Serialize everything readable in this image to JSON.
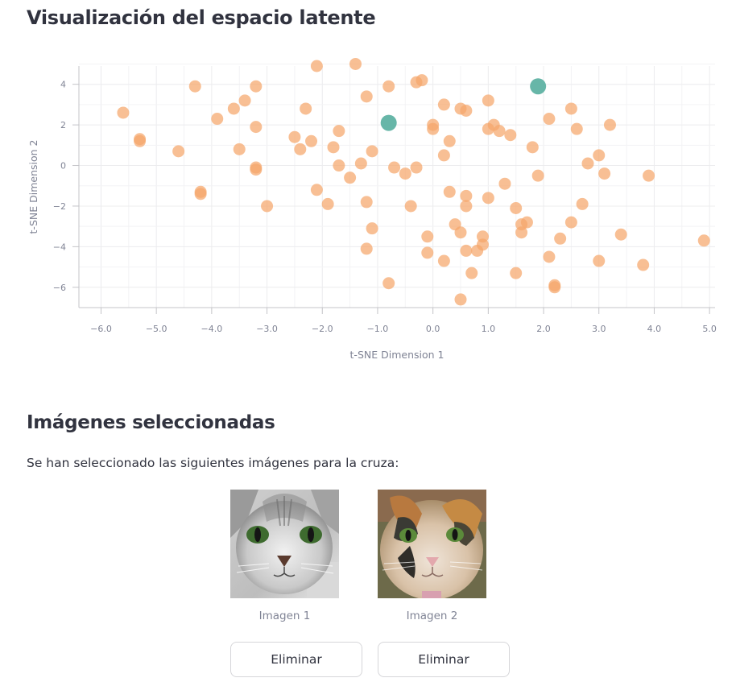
{
  "page": {
    "title": "Visualización del espacio latente",
    "selected_title": "Imágenes seleccionadas",
    "selected_text": "Se han seleccionado las siguientes imágenes para la cruza:"
  },
  "images": [
    {
      "caption": "Imagen 1",
      "button_label": "Eliminar",
      "icon": "gray-cat-photo"
    },
    {
      "caption": "Imagen 2",
      "button_label": "Eliminar",
      "icon": "calico-cat-photo"
    }
  ],
  "colors": {
    "points": "#f5a66b",
    "selected": "#5fb2a3"
  },
  "chart_data": {
    "type": "scatter",
    "xlabel": "t-SNE Dimension 1",
    "ylabel": "t-SNE Dimension 2",
    "xlim": [
      -6.4,
      5.1
    ],
    "ylim": [
      -7.0,
      4.9
    ],
    "xticks": [
      "−6.0",
      "−5.0",
      "−4.0",
      "−3.0",
      "−2.0",
      "−1.0",
      "0.0",
      "1.0",
      "2.0",
      "3.0",
      "4.0",
      "5.0"
    ],
    "yticks": [
      "4",
      "2",
      "0",
      "−2",
      "−4",
      "−6"
    ],
    "grid": true,
    "series": [
      {
        "points": [
          [
            -5.6,
            2.6
          ],
          [
            -5.3,
            1.3
          ],
          [
            -5.3,
            1.2
          ],
          [
            -4.6,
            0.7
          ],
          [
            -4.3,
            3.9
          ],
          [
            -4.2,
            -1.3
          ],
          [
            -4.2,
            -1.4
          ],
          [
            -3.9,
            2.3
          ],
          [
            -3.6,
            2.8
          ],
          [
            -3.5,
            0.8
          ],
          [
            -3.4,
            3.2
          ],
          [
            -3.2,
            3.9
          ],
          [
            -3.2,
            -0.1
          ],
          [
            -3.2,
            -0.2
          ],
          [
            -3.2,
            1.9
          ],
          [
            -3.0,
            -2.0
          ],
          [
            -2.5,
            1.4
          ],
          [
            -2.4,
            0.8
          ],
          [
            -2.3,
            2.8
          ],
          [
            -2.2,
            1.2
          ],
          [
            -2.1,
            4.9
          ],
          [
            -2.1,
            -1.2
          ],
          [
            -1.9,
            -1.9
          ],
          [
            -1.8,
            0.9
          ],
          [
            -1.7,
            1.7
          ],
          [
            -1.7,
            0.0
          ],
          [
            -1.5,
            -0.6
          ],
          [
            -1.4,
            5.0
          ],
          [
            -1.3,
            0.1
          ],
          [
            -1.2,
            3.4
          ],
          [
            -1.2,
            -4.1
          ],
          [
            -1.2,
            -1.8
          ],
          [
            -1.1,
            -3.1
          ],
          [
            -1.1,
            0.7
          ],
          [
            -0.8,
            3.9
          ],
          [
            -0.8,
            -5.8
          ],
          [
            -0.7,
            -0.1
          ],
          [
            -0.5,
            -0.4
          ],
          [
            -0.4,
            -2.0
          ],
          [
            -0.3,
            4.1
          ],
          [
            -0.3,
            -0.1
          ],
          [
            -0.2,
            4.2
          ],
          [
            -0.1,
            -3.5
          ],
          [
            -0.1,
            -4.3
          ],
          [
            0.0,
            1.8
          ],
          [
            0.0,
            2.0
          ],
          [
            0.2,
            3.0
          ],
          [
            0.2,
            0.5
          ],
          [
            0.2,
            -4.7
          ],
          [
            0.3,
            -1.3
          ],
          [
            0.3,
            1.2
          ],
          [
            0.4,
            -2.9
          ],
          [
            0.5,
            2.8
          ],
          [
            0.5,
            -3.3
          ],
          [
            0.5,
            -6.6
          ],
          [
            0.6,
            -1.5
          ],
          [
            0.6,
            -2.0
          ],
          [
            0.6,
            2.7
          ],
          [
            0.6,
            -4.2
          ],
          [
            0.7,
            -5.3
          ],
          [
            0.8,
            -4.2
          ],
          [
            0.9,
            -3.5
          ],
          [
            0.9,
            -3.9
          ],
          [
            1.0,
            1.8
          ],
          [
            1.0,
            -1.6
          ],
          [
            1.0,
            3.2
          ],
          [
            1.1,
            2.0
          ],
          [
            1.2,
            1.7
          ],
          [
            1.3,
            -0.9
          ],
          [
            1.4,
            1.5
          ],
          [
            1.5,
            -5.3
          ],
          [
            1.5,
            -2.1
          ],
          [
            1.6,
            -3.3
          ],
          [
            1.6,
            -2.9
          ],
          [
            1.7,
            -2.8
          ],
          [
            1.8,
            0.9
          ],
          [
            1.9,
            -0.5
          ],
          [
            2.1,
            2.3
          ],
          [
            2.1,
            -4.5
          ],
          [
            2.2,
            -6.0
          ],
          [
            2.2,
            -5.9
          ],
          [
            2.3,
            -3.6
          ],
          [
            2.5,
            2.8
          ],
          [
            2.5,
            -2.8
          ],
          [
            2.6,
            1.8
          ],
          [
            2.7,
            -1.9
          ],
          [
            2.8,
            0.1
          ],
          [
            3.0,
            0.5
          ],
          [
            3.0,
            -4.7
          ],
          [
            3.1,
            -0.4
          ],
          [
            3.2,
            2.0
          ],
          [
            3.4,
            -3.4
          ],
          [
            3.8,
            -4.9
          ],
          [
            3.9,
            -0.5
          ],
          [
            4.9,
            -3.7
          ]
        ]
      },
      {
        "points": [
          [
            -0.8,
            2.1
          ],
          [
            1.9,
            3.9
          ]
        ]
      }
    ]
  }
}
